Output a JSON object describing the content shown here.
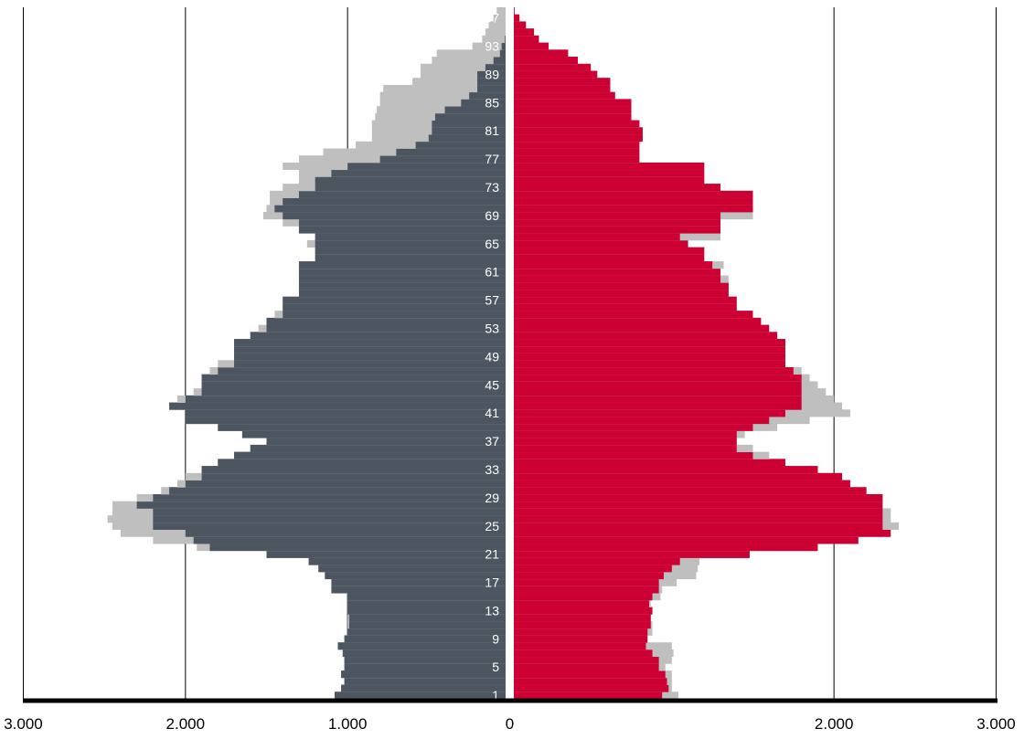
{
  "colors": {
    "background": "#ffffff",
    "male": "#4d5660",
    "female": "#cc0033",
    "other_year": "#bfbfbf",
    "outline": "#000000",
    "grid": "#000000",
    "age_label": "#ffffff"
  },
  "chart_data": {
    "type": "bar",
    "orientation": "horizontal",
    "layout": "population-pyramid",
    "title": "",
    "xlabel": "",
    "ylabel": "",
    "xlim": [
      -3000,
      3000
    ],
    "ylim": [
      1,
      97
    ],
    "grid": true,
    "legend": "none",
    "x_tick_values": [
      -3000,
      -2000,
      -1000,
      0,
      2000,
      3000
    ],
    "x_tick_labels": [
      "3.000",
      "2.000",
      "1.000",
      "0",
      "2.000",
      "3.000"
    ],
    "age_tick_labels": [
      "1",
      "5",
      "9",
      "13",
      "17",
      "21",
      "25",
      "29",
      "33",
      "37",
      "41",
      "45",
      "49",
      "53",
      "57",
      "61",
      "65",
      "69",
      "73",
      "77",
      "81",
      "85",
      "89",
      "93",
      "97"
    ],
    "age_tick_values": [
      1,
      5,
      9,
      13,
      17,
      21,
      25,
      29,
      33,
      37,
      41,
      45,
      49,
      53,
      57,
      61,
      65,
      69,
      73,
      77,
      81,
      85,
      89,
      93,
      97
    ],
    "series_colors": [
      "#4d5660",
      "#cc0033",
      "#bfbfbf"
    ],
    "ages": [
      1,
      2,
      3,
      4,
      5,
      6,
      7,
      8,
      9,
      10,
      11,
      12,
      13,
      14,
      15,
      16,
      17,
      18,
      19,
      20,
      21,
      22,
      23,
      24,
      25,
      26,
      27,
      28,
      29,
      30,
      31,
      32,
      33,
      34,
      35,
      36,
      37,
      38,
      39,
      40,
      41,
      42,
      43,
      44,
      45,
      46,
      47,
      48,
      49,
      50,
      51,
      52,
      53,
      54,
      55,
      56,
      57,
      58,
      59,
      60,
      61,
      62,
      63,
      64,
      65,
      66,
      67,
      68,
      69,
      70,
      71,
      72,
      73,
      74,
      75,
      76,
      77,
      78,
      79,
      80,
      81,
      82,
      83,
      84,
      85,
      86,
      87,
      88,
      89,
      90,
      91,
      92,
      93,
      94,
      95,
      96,
      97,
      98
    ],
    "series": [
      {
        "values": [
          1080,
          1040,
          1020,
          1040,
          1020,
          1020,
          1030,
          1060,
          1020,
          1000,
          990,
          990,
          1000,
          1000,
          1000,
          1100,
          1100,
          1140,
          1180,
          1240,
          1500,
          1850,
          1950,
          2000,
          2200,
          2200,
          2200,
          2300,
          2200,
          2100,
          2000,
          1900,
          1900,
          1800,
          1700,
          1600,
          1500,
          1650,
          1800,
          2000,
          2000,
          2100,
          2000,
          1900,
          1900,
          1900,
          1800,
          1700,
          1700,
          1700,
          1700,
          1600,
          1500,
          1500,
          1400,
          1400,
          1400,
          1300,
          1300,
          1300,
          1300,
          1300,
          1200,
          1200,
          1200,
          1200,
          1300,
          1300,
          1400,
          1450,
          1400,
          1300,
          1200,
          1200,
          1100,
          1000,
          800,
          700,
          580,
          500,
          480,
          480,
          460,
          400,
          300,
          250,
          200,
          200,
          200,
          150,
          100,
          60,
          50,
          30,
          20,
          10,
          5,
          2
        ]
      },
      {
        "values": [
          940,
          980,
          970,
          960,
          920,
          920,
          880,
          840,
          850,
          850,
          870,
          870,
          880,
          860,
          880,
          920,
          920,
          950,
          1000,
          1050,
          1480,
          1900,
          2150,
          2350,
          2300,
          2300,
          2300,
          2300,
          2300,
          2200,
          2100,
          2050,
          1900,
          1700,
          1500,
          1400,
          1400,
          1400,
          1500,
          1600,
          1700,
          1800,
          1800,
          1800,
          1800,
          1800,
          1750,
          1700,
          1700,
          1700,
          1700,
          1650,
          1600,
          1550,
          1500,
          1400,
          1400,
          1350,
          1350,
          1300,
          1300,
          1250,
          1200,
          1200,
          1100,
          1050,
          1300,
          1300,
          1300,
          1500,
          1500,
          1500,
          1300,
          1200,
          1200,
          1200,
          800,
          800,
          800,
          820,
          820,
          800,
          750,
          750,
          750,
          650,
          620,
          620,
          540,
          500,
          420,
          360,
          240,
          180,
          150,
          100,
          60,
          30
        ]
      },
      {
        "values": [
          920,
          940,
          950,
          970,
          960,
          1000,
          1030,
          1040,
          1000,
          1000,
          1000,
          1000,
          970,
          970,
          960,
          1000,
          1060,
          1120,
          1150,
          1220,
          1460,
          1930,
          2200,
          2400,
          2450,
          2480,
          2450,
          2450,
          2300,
          2150,
          2050,
          2000,
          1800,
          1750,
          1600,
          1600,
          1500,
          1550,
          1600,
          1800,
          1900,
          2050,
          2050,
          1950,
          1900,
          1850,
          1850,
          1800,
          1690,
          1690,
          1650,
          1550,
          1550,
          1450,
          1450,
          1400,
          1300,
          1300,
          1300,
          1300,
          1280,
          1250,
          1200,
          1150,
          1250,
          1200,
          1300,
          1400,
          1520,
          1500,
          1480,
          1480,
          1400,
          1300,
          1300,
          1400,
          1300,
          1150,
          950,
          850,
          850,
          850,
          830,
          820,
          800,
          800,
          780,
          600,
          550,
          550,
          480,
          450,
          230,
          170,
          150,
          130,
          100,
          80
        ]
      },
      {
        "values": [
          1040,
          1000,
          1000,
          1000,
          960,
          1000,
          1010,
          1000,
          850,
          880,
          880,
          870,
          870,
          870,
          930,
          940,
          1030,
          1150,
          1160,
          1170,
          1400,
          1700,
          2050,
          2350,
          2400,
          2350,
          2350,
          2300,
          2200,
          2100,
          2050,
          1800,
          1700,
          1600,
          1600,
          1500,
          1400,
          1450,
          1650,
          1850,
          2100,
          2050,
          2000,
          1950,
          1900,
          1850,
          1800,
          1700,
          1700,
          1700,
          1700,
          1550,
          1550,
          1450,
          1450,
          1350,
          1300,
          1300,
          1300,
          1350,
          1300,
          1320,
          1150,
          1150,
          1100,
          1300,
          1300,
          1300,
          1500,
          1500,
          1500,
          1500,
          1300,
          1200,
          1200,
          1200,
          800,
          800,
          800,
          820,
          820,
          800,
          750,
          750,
          750,
          650,
          620,
          620,
          540,
          500,
          420,
          360,
          240,
          180,
          150,
          100,
          60,
          30
        ]
      }
    ]
  }
}
